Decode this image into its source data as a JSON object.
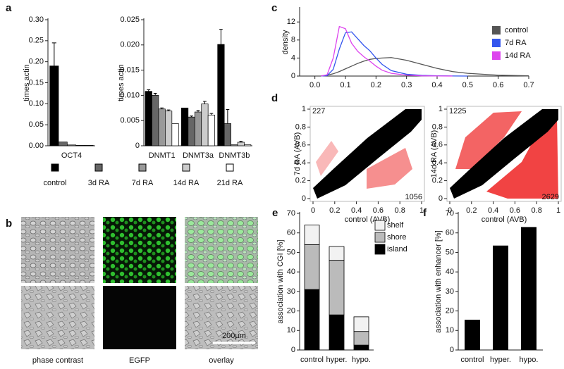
{
  "chart_data": [
    {
      "type": "bar",
      "panel": "a",
      "ylabel": "times actin",
      "categories": [
        "OCT4"
      ],
      "series": [
        {
          "color": "#000000",
          "values": [
            0.19
          ],
          "errors": [
            0.055
          ]
        },
        {
          "color": "#666666",
          "values": [
            0.009
          ],
          "errors": [
            0
          ]
        },
        {
          "color": "#999999",
          "values": [
            0.002
          ],
          "errors": [
            0
          ]
        },
        {
          "color": "#cccccc",
          "values": [
            0.001
          ],
          "errors": [
            0
          ]
        },
        {
          "color": "#ffffff",
          "values": [
            0.001
          ],
          "errors": [
            0
          ]
        }
      ],
      "ylim": [
        0,
        0.3
      ],
      "yticks": [
        {
          "value": 0,
          "label": "0.00"
        },
        0.05,
        {
          "value": 0.1,
          "label": "0.10"
        },
        0.15,
        {
          "value": 0.2,
          "label": "0.20"
        },
        0.25,
        {
          "value": 0.3,
          "label": "0.30"
        }
      ]
    },
    {
      "type": "bar",
      "ylabel": "times actin",
      "categories": [
        "DNMT1",
        "DNMT3a",
        "DNMT3b"
      ],
      "series": [
        {
          "name": "control",
          "color": "#000000",
          "values": [
            0.0108,
            0.0075,
            0.0201
          ],
          "errors": [
            0.0003,
            0,
            0.003
          ]
        },
        {
          "name": "3d RA",
          "color": "#666666",
          "values": [
            0.01,
            0.0057,
            0.0044
          ],
          "errors": [
            0.0004,
            0.0002,
            0.0028
          ]
        },
        {
          "name": "7d RA",
          "color": "#999999",
          "values": [
            0.0073,
            0.0067,
            0.0002
          ],
          "errors": [
            0.0002,
            0.0003,
            0
          ]
        },
        {
          "name": "14d RA",
          "color": "#cccccc",
          "values": [
            0.0069,
            0.0083,
            0.0007
          ],
          "errors": [
            0.0002,
            0.0005,
            0.0002
          ]
        },
        {
          "name": "21d RA",
          "color": "#ffffff",
          "values": [
            0.0044,
            0.0061,
            0.0002
          ],
          "errors": [
            0,
            0.0003,
            0
          ]
        }
      ],
      "ylim": [
        0,
        0.025
      ],
      "yticks": [
        0,
        0.005,
        {
          "value": 0.01,
          "label": "0.010"
        },
        0.015,
        {
          "value": 0.02,
          "label": "0.020"
        },
        0.025
      ],
      "legend": "bottom"
    },
    {
      "type": "line",
      "panel": "c",
      "ylabel": "density",
      "x": [
        0.02,
        0.04,
        0.06,
        0.08,
        0.1,
        0.12,
        0.14,
        0.16,
        0.18,
        0.2,
        0.22,
        0.25,
        0.3,
        0.35,
        0.4,
        0.45,
        0.5,
        0.6,
        0.7
      ],
      "series": [
        {
          "name": "control",
          "color": "#555555",
          "values": [
            0.03,
            0.2,
            0.5,
            1,
            1.6,
            2.2,
            2.8,
            3.3,
            3.7,
            3.9,
            4,
            4.1,
            3.5,
            2.6,
            1.7,
            1,
            0.6,
            0.2,
            0.05
          ]
        },
        {
          "name": "7d RA",
          "color": "#3355ee",
          "values": [
            0,
            0.1,
            1.5,
            6,
            9.6,
            9.8,
            8.3,
            6.8,
            5.6,
            4,
            2.6,
            1.2,
            0.4,
            0.15,
            0.05,
            0.02,
            0,
            null,
            null
          ]
        },
        {
          "name": "14d RA",
          "color": "#dd44ee",
          "values": [
            0,
            0.3,
            4,
            11,
            10.5,
            7.3,
            5.5,
            4.3,
            3.3,
            2.2,
            1.3,
            0.6,
            0.2,
            0.05,
            0.02,
            0,
            null,
            null,
            null
          ]
        }
      ],
      "xlim": [
        -0.05,
        0.7
      ],
      "xticks": [
        {
          "value": 0,
          "label": "0.0"
        },
        0.1,
        0.2,
        0.3,
        0.4,
        0.5,
        0.6,
        0.7
      ],
      "ylim": [
        0,
        15
      ],
      "yticks": [
        0,
        4,
        8,
        12
      ],
      "legend": "top-right"
    },
    {
      "type": "scatter",
      "panel": "d",
      "xlabel": "control (AVB)",
      "ylabel": "7d RA (AVB)",
      "xlim": [
        0,
        1
      ],
      "xticks": [
        0,
        0.2,
        0.4,
        0.6,
        0.8,
        1
      ],
      "ylim": [
        0,
        1
      ],
      "yticks": [
        0,
        0.2,
        0.4,
        0.6,
        0.8,
        1
      ],
      "annotations": [
        {
          "text": "227",
          "position": "top-left"
        },
        {
          "text": "1056",
          "position": "bottom-right"
        }
      ]
    },
    {
      "type": "scatter",
      "xlabel": "control (AVB)",
      "ylabel": "14d RA (AVB)",
      "xlim": [
        0,
        1
      ],
      "xticks": [
        0,
        0.2,
        0.4,
        0.6,
        0.8,
        1
      ],
      "ylim": [
        0,
        1
      ],
      "yticks": [
        0,
        0.2,
        0.4,
        0.6,
        0.8,
        1
      ],
      "annotations": [
        {
          "text": "1225",
          "position": "top-left"
        },
        {
          "text": "2629",
          "position": "bottom-right"
        }
      ]
    },
    {
      "type": "bar",
      "stacked": true,
      "panel": "e",
      "ylabel": "association with CGI [%]",
      "categories": [
        "control",
        "hyper.",
        "hypo."
      ],
      "series": [
        {
          "name": "island",
          "color": "#000000",
          "values": [
            31,
            18,
            2.5
          ]
        },
        {
          "name": "shore",
          "color": "#bbbbbb",
          "values": [
            23,
            28,
            7
          ]
        },
        {
          "name": "shelf",
          "color": "#f2f2f2",
          "values": [
            10,
            7,
            7.5
          ]
        }
      ],
      "ylim": [
        0,
        70
      ],
      "yticks": [
        0,
        10,
        20,
        30,
        40,
        50,
        60,
        70
      ],
      "legend": "top-right"
    },
    {
      "type": "bar",
      "panel": "f",
      "ylabel": "association with enhancer [%]",
      "categories": [
        "control",
        "hyper.",
        "hypo."
      ],
      "values": [
        15.5,
        53.5,
        63
      ],
      "color": "#000000",
      "ylim": [
        0,
        70
      ],
      "yticks": [
        0,
        10,
        20,
        30,
        40,
        50,
        60,
        70
      ]
    }
  ],
  "image_panel": {
    "panel": "b",
    "captions": [
      "phase contrast",
      "EGFP",
      "overlay"
    ],
    "scale_bar": "200µm"
  }
}
